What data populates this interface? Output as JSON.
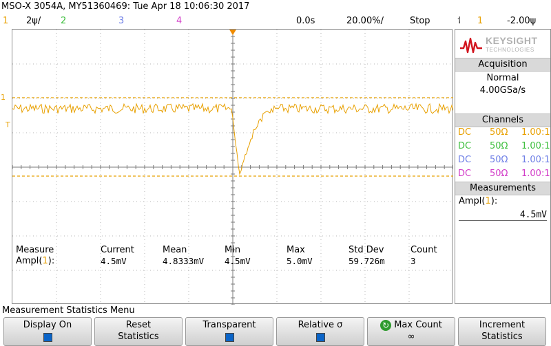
{
  "title": "MSO-X 3054A, MY51360469: Tue Apr 18 10:06:30 2017",
  "status": {
    "ch1_num": "1",
    "ch1_scale": "2ψ/",
    "ch2_num": "2",
    "ch3_num": "3",
    "ch4_num": "4",
    "time_pos": "0.0s",
    "time_scale": "20.00%/",
    "run_state": "Stop",
    "trigger_icon": "⸶",
    "trigger_source": "1",
    "trigger_level": "-2.00ψ"
  },
  "brand": {
    "name": "KEYSIGHT",
    "sub": "TECHNOLOGIES"
  },
  "acquisition": {
    "header": "Acquisition",
    "mode": "Normal",
    "rate": "4.00GSa/s"
  },
  "channels": {
    "header": "Channels",
    "rows": [
      {
        "coupling": "DC",
        "impedance": "50Ω",
        "probe": "1.00:1",
        "color": "#e8a000"
      },
      {
        "coupling": "DC",
        "impedance": "50Ω",
        "probe": "1.00:1",
        "color": "#3cbe3c"
      },
      {
        "coupling": "DC",
        "impedance": "50Ω",
        "probe": "1.00:1",
        "color": "#6d7ee6"
      },
      {
        "coupling": "DC",
        "impedance": "50Ω",
        "probe": "1.00:1",
        "color": "#d23cc8"
      }
    ]
  },
  "measurements_panel": {
    "header": "Measurements",
    "label": "Ampl(",
    "label_ch": "1",
    "label_end": "):",
    "value": "4.5mV"
  },
  "grid_markers": {
    "ch1": "1",
    "trigger": "T"
  },
  "measure_table": {
    "headers": [
      "Measure",
      "Current",
      "Mean",
      "Min",
      "Max",
      "Std Dev",
      "Count"
    ],
    "row_label_pre": "Ampl(",
    "row_label_ch": "1",
    "row_label_post": "):",
    "values": [
      "4.5mV",
      "4.8333mV",
      "4.5mV",
      "5.0mV",
      "59.726m",
      "3"
    ]
  },
  "menu_title": "Measurement Statistics Menu",
  "softkeys": [
    {
      "line1": "Display On",
      "line2": ""
    },
    {
      "line1": "Reset",
      "line2": "Statistics"
    },
    {
      "line1": "Transparent",
      "line2": ""
    },
    {
      "line1": "Relative σ",
      "line2": ""
    },
    {
      "line1": "Max Count",
      "line2": "∞"
    },
    {
      "line1": "Increment",
      "line2": "Statistics"
    }
  ],
  "colors": {
    "ch1": "#e8a000",
    "ch2": "#3cbe3c",
    "ch3": "#6d7ee6",
    "ch4": "#d23cc8",
    "trigger_marker": "#f08c00",
    "accent_red": "#d2141e"
  }
}
